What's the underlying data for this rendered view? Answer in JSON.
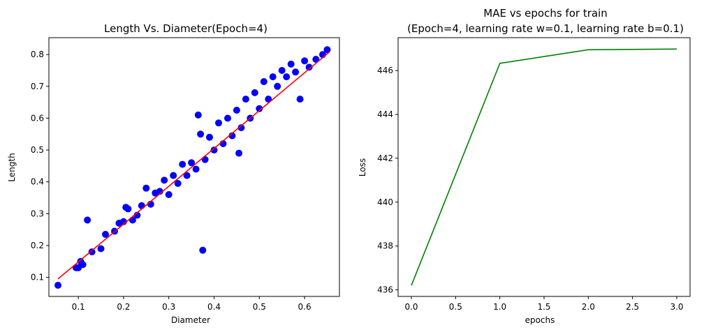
{
  "chart_data": [
    {
      "type": "scatter",
      "title": "Length Vs. Diameter(Epoch=4)",
      "xlabel": "Diameter",
      "ylabel": "Length",
      "xlim": [
        0.035,
        0.677
      ],
      "ylim": [
        0.04,
        0.853
      ],
      "xticks": [
        "0.1",
        "0.2",
        "0.3",
        "0.4",
        "0.5",
        "0.6"
      ],
      "yticks": [
        "0.1",
        "0.2",
        "0.3",
        "0.4",
        "0.5",
        "0.6",
        "0.7",
        "0.8"
      ],
      "xtick_values": [
        0.1,
        0.2,
        0.3,
        0.4,
        0.5,
        0.6
      ],
      "ytick_values": [
        0.1,
        0.2,
        0.3,
        0.4,
        0.5,
        0.6,
        0.7,
        0.8
      ],
      "grid": false,
      "series": [
        {
          "type": "scatter",
          "color": "#0000ff",
          "points": [
            [
              0.055,
              0.075
            ],
            [
              0.095,
              0.13
            ],
            [
              0.1,
              0.13
            ],
            [
              0.105,
              0.15
            ],
            [
              0.11,
              0.14
            ],
            [
              0.12,
              0.28
            ],
            [
              0.13,
              0.18
            ],
            [
              0.15,
              0.19
            ],
            [
              0.16,
              0.235
            ],
            [
              0.18,
              0.245
            ],
            [
              0.19,
              0.27
            ],
            [
              0.2,
              0.275
            ],
            [
              0.205,
              0.32
            ],
            [
              0.21,
              0.315
            ],
            [
              0.22,
              0.28
            ],
            [
              0.23,
              0.295
            ],
            [
              0.24,
              0.325
            ],
            [
              0.25,
              0.38
            ],
            [
              0.26,
              0.33
            ],
            [
              0.27,
              0.365
            ],
            [
              0.28,
              0.37
            ],
            [
              0.29,
              0.405
            ],
            [
              0.3,
              0.36
            ],
            [
              0.31,
              0.42
            ],
            [
              0.32,
              0.395
            ],
            [
              0.33,
              0.455
            ],
            [
              0.34,
              0.42
            ],
            [
              0.35,
              0.46
            ],
            [
              0.36,
              0.44
            ],
            [
              0.365,
              0.61
            ],
            [
              0.37,
              0.55
            ],
            [
              0.375,
              0.185
            ],
            [
              0.38,
              0.47
            ],
            [
              0.39,
              0.54
            ],
            [
              0.4,
              0.5
            ],
            [
              0.41,
              0.585
            ],
            [
              0.42,
              0.52
            ],
            [
              0.43,
              0.6
            ],
            [
              0.44,
              0.545
            ],
            [
              0.45,
              0.625
            ],
            [
              0.455,
              0.49
            ],
            [
              0.46,
              0.57
            ],
            [
              0.47,
              0.66
            ],
            [
              0.48,
              0.6
            ],
            [
              0.49,
              0.68
            ],
            [
              0.5,
              0.63
            ],
            [
              0.51,
              0.715
            ],
            [
              0.52,
              0.66
            ],
            [
              0.53,
              0.73
            ],
            [
              0.54,
              0.7
            ],
            [
              0.55,
              0.75
            ],
            [
              0.56,
              0.73
            ],
            [
              0.57,
              0.77
            ],
            [
              0.58,
              0.745
            ],
            [
              0.59,
              0.66
            ],
            [
              0.6,
              0.78
            ],
            [
              0.61,
              0.76
            ],
            [
              0.625,
              0.785
            ],
            [
              0.64,
              0.8
            ],
            [
              0.65,
              0.815
            ]
          ]
        },
        {
          "type": "line",
          "color": "#ff0000",
          "points": [
            [
              0.055,
              0.095
            ],
            [
              0.655,
              0.808
            ]
          ]
        }
      ]
    },
    {
      "type": "line",
      "title": "MAE vs epochs for train",
      "subtitle": "(Epoch=4, learning rate w=0.1, learning rate b=0.1)",
      "xlabel": "epochs",
      "ylabel": "Loss",
      "xlim": [
        -0.15,
        3.15
      ],
      "ylim": [
        435.7,
        447.5
      ],
      "xticks": [
        "0.0",
        "0.5",
        "1.0",
        "1.5",
        "2.0",
        "2.5",
        "3.0"
      ],
      "yticks": [
        "436",
        "438",
        "440",
        "442",
        "444",
        "446"
      ],
      "xtick_values": [
        0.0,
        0.5,
        1.0,
        1.5,
        2.0,
        2.5,
        3.0
      ],
      "ytick_values": [
        436,
        438,
        440,
        442,
        444,
        446
      ],
      "grid": false,
      "series": [
        {
          "type": "line",
          "color": "#008000",
          "x": [
            0,
            1,
            2,
            3
          ],
          "values": [
            436.2,
            446.33,
            446.95,
            446.98
          ]
        }
      ]
    }
  ]
}
